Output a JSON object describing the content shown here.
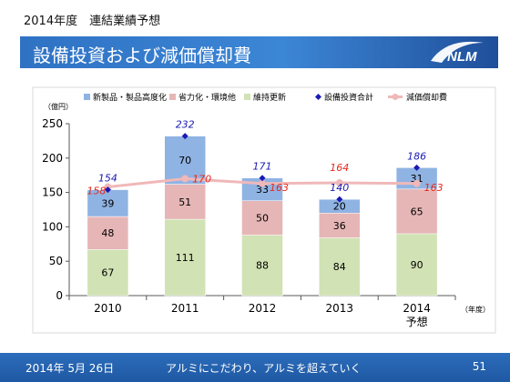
{
  "header": {
    "subtitle": "2014年度　連結業績予想",
    "title": "設備投資および減価償却費",
    "logo_text": "NLM"
  },
  "footer": {
    "date": "2014年 5月 26日",
    "slogan": "アルミにこだわり、アルミを超えていく",
    "page": "51"
  },
  "colors": {
    "title_band": "#2f72c4",
    "footer_bar": "#1f58a3",
    "new_products": "#8fb3e3",
    "energy_saving": "#e6b6b6",
    "maintenance": "#d1e2b4",
    "capex_marker": "#1a1ab4",
    "capex_label": "#1a1ab4",
    "depreciation_line": "#f0b8b8",
    "depreciation_label": "#e8281c"
  },
  "chart_data": {
    "type": "bar",
    "stacked": true,
    "categories": [
      "2010",
      "2011",
      "2012",
      "2013",
      "2014\n予想"
    ],
    "x_unit_label": "（年度）",
    "y_unit_label": "（億円）",
    "ylim": [
      0,
      250
    ],
    "yticks": [
      0,
      50,
      100,
      150,
      200,
      250
    ],
    "grid": false,
    "legend_position": "top",
    "series": [
      {
        "name": "維持更新",
        "kind": "bar",
        "color": "#d1e2b4",
        "values": [
          67,
          111,
          88,
          84,
          90
        ]
      },
      {
        "name": "省力化・環境他",
        "kind": "bar",
        "color": "#e6b6b6",
        "values": [
          48,
          51,
          50,
          36,
          65
        ]
      },
      {
        "name": "新製品・製品高度化",
        "kind": "bar",
        "color": "#8fb3e3",
        "values": [
          39,
          70,
          33,
          20,
          31
        ]
      },
      {
        "name": "設備投資合計",
        "kind": "marker",
        "color": "#1a1ab4",
        "values": [
          154,
          232,
          171,
          140,
          186
        ]
      },
      {
        "name": "減価償却費",
        "kind": "line",
        "color": "#f0b8b8",
        "values": [
          158,
          170,
          163,
          164,
          163
        ]
      }
    ],
    "legend_order": [
      "新製品・製品高度化",
      "省力化・環境他",
      "維持更新",
      "設備投資合計",
      "減価償却費"
    ]
  }
}
